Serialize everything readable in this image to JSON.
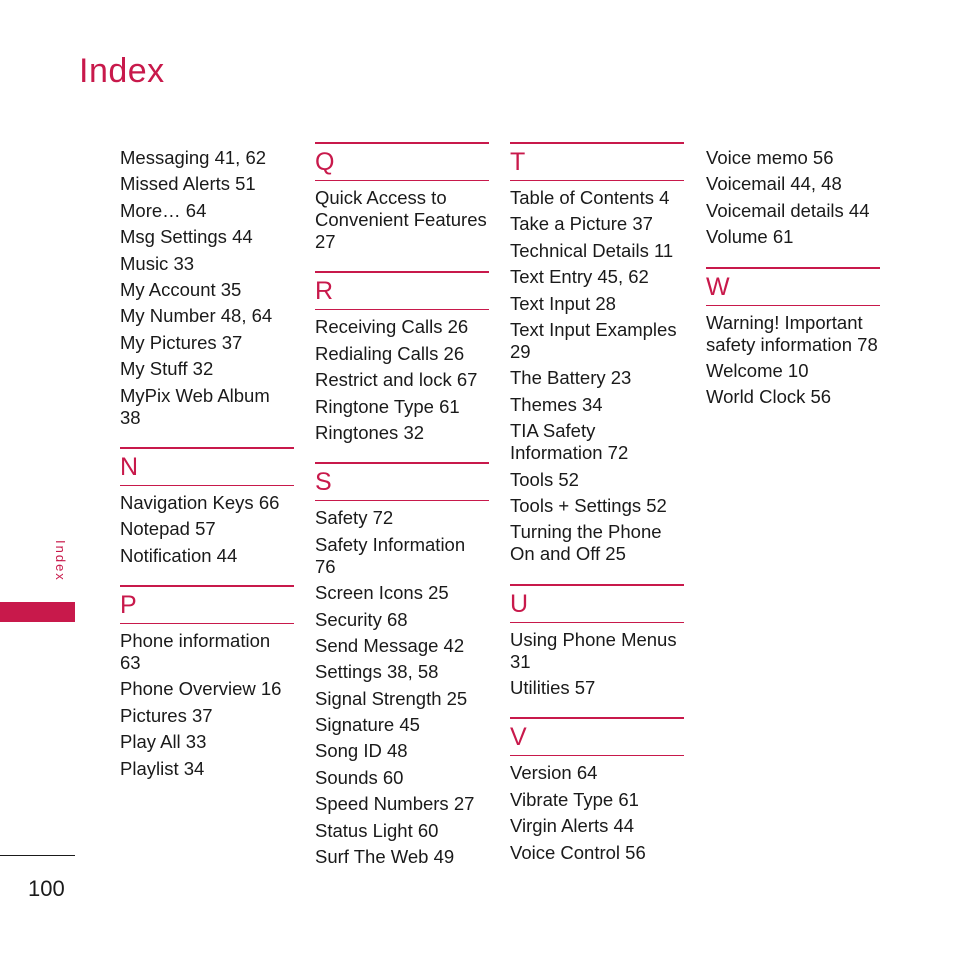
{
  "title": "Index",
  "side_label": "Index",
  "page_number": "100",
  "accent_color": "#c8194b",
  "col1": {
    "top_entries": [
      "Messaging 41, 62",
      "Missed Alerts 51",
      "More… 64",
      "Msg Settings 44",
      "Music 33",
      "My Account 35",
      "My Number 48, 64",
      "My Pictures 37",
      "My Stuff 32",
      "MyPix Web Album 38"
    ],
    "sections": [
      {
        "letter": "N",
        "entries": [
          "Navigation Keys 66",
          "Notepad 57",
          "Notification 44"
        ]
      },
      {
        "letter": "P",
        "entries": [
          "Phone information 63",
          "Phone Overview 16",
          "Pictures 37",
          "Play All 33",
          "Playlist 34"
        ]
      }
    ]
  },
  "col2": {
    "sections": [
      {
        "letter": "Q",
        "entries": [
          "Quick Access to Convenient Features 27"
        ]
      },
      {
        "letter": "R",
        "entries": [
          "Receiving Calls 26",
          "Redialing Calls 26",
          "Restrict and lock 67",
          "Ringtone Type 61",
          "Ringtones 32"
        ]
      },
      {
        "letter": "S",
        "entries": [
          "Safety 72",
          "Safety Information 76",
          "Screen Icons 25",
          "Security 68",
          "Send Message 42",
          "Settings 38, 58",
          "Signal Strength 25",
          "Signature 45",
          "Song ID 48",
          "Sounds 60",
          "Speed Numbers 27",
          "Status Light 60",
          "Surf The Web 49"
        ]
      }
    ]
  },
  "col3": {
    "sections": [
      {
        "letter": "T",
        "entries": [
          "Table of Contents 4",
          "Take a Picture 37",
          "Technical Details 11",
          "Text Entry 45, 62",
          "Text Input 28",
          "Text Input Examples 29",
          "The Battery 23",
          "Themes 34",
          "TIA Safety Information 72",
          "Tools 52",
          "Tools + Settings 52",
          "Turning the Phone On and Off 25"
        ]
      },
      {
        "letter": "U",
        "entries": [
          "Using Phone Menus 31",
          "Utilities 57"
        ]
      },
      {
        "letter": "V",
        "entries": [
          "Version 64",
          "Vibrate Type 61",
          "Virgin Alerts 44",
          "Voice Control 56"
        ]
      }
    ]
  },
  "col4": {
    "top_entries": [
      "Voice memo 56",
      "Voicemail 44, 48",
      "Voicemail details 44",
      "Volume 61"
    ],
    "sections": [
      {
        "letter": "W",
        "entries": [
          "Warning! Important safety information 78",
          "Welcome 10",
          "World Clock 56"
        ]
      }
    ]
  }
}
